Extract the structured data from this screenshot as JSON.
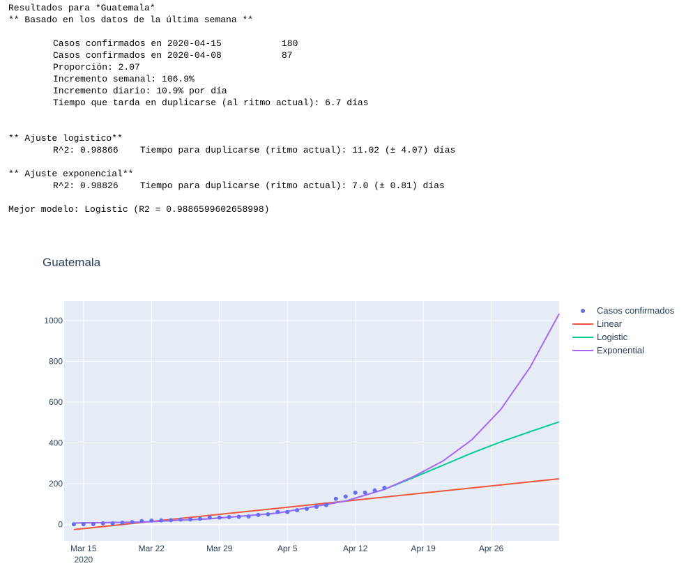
{
  "report": {
    "header1": "Resultados para *Guatemala*",
    "header2": "** Basado en los datos de la última semana **",
    "confirmed_now_label": "Casos confirmados en 2020-04-15",
    "confirmed_now_value": "180",
    "confirmed_prev_label": "Casos confirmados en 2020-04-08",
    "confirmed_prev_value": "87",
    "ratio": "Proporción: 2.07",
    "weekly_increase": "Incremento semanal: 106.9%",
    "daily_increase": "Incremento diario: 10.9% por día",
    "doubling_time": "Tiempo que tarda en duplicarse (al ritmo actual): 6.7 días",
    "logistic_header": "** Ajuste logistico**",
    "logistic_stats": "R^2: 0.98866    Tiempo para duplicarse (ritmo actual): 11.02 (± 4.07) días",
    "exponential_header": "** Ajuste exponencial**",
    "exponential_stats": "R^2: 0.98826    Tiempo para duplicarse (ritmo actual): 7.0 (± 0.81) días",
    "best_model": "Mejor modelo: Logistic (R2 = 0.9886599602658998)"
  },
  "chart_data": {
    "type": "line",
    "title": "Guatemala",
    "xlabel": "",
    "ylabel": "",
    "x_range": [
      "2020-03-13",
      "2020-05-03"
    ],
    "ylim": [
      -80,
      1095
    ],
    "x_ticks": [
      {
        "date": "2020-03-15",
        "label": "Mar 15",
        "sublabel": "2020"
      },
      {
        "date": "2020-03-22",
        "label": "Mar 22",
        "sublabel": ""
      },
      {
        "date": "2020-03-29",
        "label": "Mar 29",
        "sublabel": ""
      },
      {
        "date": "2020-04-05",
        "label": "Apr 5",
        "sublabel": ""
      },
      {
        "date": "2020-04-12",
        "label": "Apr 12",
        "sublabel": ""
      },
      {
        "date": "2020-04-19",
        "label": "Apr 19",
        "sublabel": ""
      },
      {
        "date": "2020-04-26",
        "label": "Apr 26",
        "sublabel": ""
      }
    ],
    "y_ticks": [
      0,
      200,
      400,
      600,
      800,
      1000
    ],
    "grid": true,
    "legend_position": "top-right",
    "background": "#e5ecf6",
    "series": [
      {
        "name": "Casos confirmados",
        "kind": "markers",
        "color": "#636efa",
        "points": [
          [
            "2020-03-14",
            1
          ],
          [
            "2020-03-15",
            1
          ],
          [
            "2020-03-16",
            2
          ],
          [
            "2020-03-17",
            6
          ],
          [
            "2020-03-18",
            6
          ],
          [
            "2020-03-19",
            9
          ],
          [
            "2020-03-20",
            12
          ],
          [
            "2020-03-21",
            17
          ],
          [
            "2020-03-22",
            19
          ],
          [
            "2020-03-23",
            20
          ],
          [
            "2020-03-24",
            21
          ],
          [
            "2020-03-25",
            24
          ],
          [
            "2020-03-26",
            25
          ],
          [
            "2020-03-27",
            28
          ],
          [
            "2020-03-28",
            34
          ],
          [
            "2020-03-29",
            34
          ],
          [
            "2020-03-30",
            36
          ],
          [
            "2020-03-31",
            38
          ],
          [
            "2020-04-01",
            39
          ],
          [
            "2020-04-02",
            47
          ],
          [
            "2020-04-03",
            50
          ],
          [
            "2020-04-04",
            61
          ],
          [
            "2020-04-05",
            61
          ],
          [
            "2020-04-06",
            70
          ],
          [
            "2020-04-07",
            77
          ],
          [
            "2020-04-08",
            87
          ],
          [
            "2020-04-09",
            95
          ],
          [
            "2020-04-10",
            126
          ],
          [
            "2020-04-11",
            137
          ],
          [
            "2020-04-12",
            156
          ],
          [
            "2020-04-13",
            156
          ],
          [
            "2020-04-14",
            167
          ],
          [
            "2020-04-15",
            180
          ]
        ]
      },
      {
        "name": "Linear",
        "kind": "line",
        "color": "#ef553b",
        "points": [
          [
            "2020-03-14",
            -25
          ],
          [
            "2020-05-03",
            224
          ]
        ]
      },
      {
        "name": "Logistic",
        "kind": "line",
        "color": "#00cc96",
        "points": [
          [
            "2020-03-14",
            7
          ],
          [
            "2020-03-21",
            12
          ],
          [
            "2020-03-28",
            28
          ],
          [
            "2020-04-04",
            56
          ],
          [
            "2020-04-11",
            115
          ],
          [
            "2020-04-15",
            172
          ],
          [
            "2020-04-18",
            230
          ],
          [
            "2020-04-21",
            290
          ],
          [
            "2020-04-24",
            350
          ],
          [
            "2020-04-27",
            405
          ],
          [
            "2020-04-30",
            455
          ],
          [
            "2020-05-03",
            503
          ]
        ]
      },
      {
        "name": "Exponential",
        "kind": "line",
        "color": "#ab63fa",
        "points": [
          [
            "2020-03-14",
            7
          ],
          [
            "2020-03-21",
            12
          ],
          [
            "2020-03-28",
            28
          ],
          [
            "2020-04-04",
            56
          ],
          [
            "2020-04-11",
            115
          ],
          [
            "2020-04-15",
            172
          ],
          [
            "2020-04-18",
            235
          ],
          [
            "2020-04-21",
            310
          ],
          [
            "2020-04-24",
            415
          ],
          [
            "2020-04-27",
            565
          ],
          [
            "2020-04-30",
            770
          ],
          [
            "2020-05-03",
            1033
          ]
        ]
      }
    ]
  }
}
